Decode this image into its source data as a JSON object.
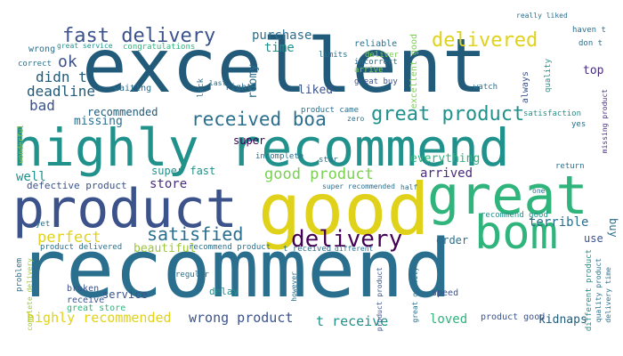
{
  "words": {
    "recommend": "recommend",
    "excellent": "excellent",
    "highly_recommend": "highly recommend",
    "product": "product",
    "good": "good",
    "great": "great",
    "bom": "bom",
    "delivery": "delivery",
    "fast_delivery": "fast delivery",
    "delivered": "delivered",
    "great_product": "great product",
    "received_boa": "received boa",
    "good_product": "good product",
    "satisfied": "satisfied",
    "perfect": "perfect",
    "ok": "ok",
    "didn_t": "didn t",
    "deadline": "deadline",
    "bad": "bad",
    "purchase": "purchase",
    "time": "time",
    "roomy": "roomy",
    "liked": "liked",
    "store": "store",
    "well": "well",
    "defective_product": "defective product",
    "super_fast": "super fast",
    "super": "super",
    "arrived": "arrived",
    "everything": "everything",
    "terrible": "terrible",
    "order": "order",
    "use": "use",
    "top": "top",
    "buy": "buy",
    "missing": "missing",
    "beautiful": "beautiful",
    "highly_recommended": "highly recommended",
    "wrong_product": "wrong product",
    "t_receive": "t receive",
    "loved": "loved",
    "kidnaps": "kidnaps",
    "service": "service",
    "delay": "delay",
    "broken": "broken",
    "receive": "receive",
    "great_store": "great store",
    "speed": "speed",
    "product_good": "product good",
    "recommend_good": "recommend good",
    "wrong": "wrong",
    "great_service": "great service",
    "congratulations": "congratulations",
    "correct": "correct",
    "waiting": "waiting",
    "right": "right",
    "lack": "lack",
    "limits": "limits",
    "reliable": "reliable",
    "deliver": "deliver",
    "incorrect": "incorrect",
    "arrive": "arrive",
    "excellent_good": "excellent good",
    "great_buy": "great buy",
    "watch": "watch",
    "always": "always",
    "quality": "quality",
    "really_liked": "really liked",
    "haven_t": "haven t",
    "don_t": "don t",
    "satisfaction": "satisfaction",
    "yes": "yes",
    "missing_product": "missing product",
    "recommended": "recommended",
    "product_came": "product came",
    "zero": "zero",
    "incomplete": "incomplete",
    "star": "star",
    "wonderful": "wonderful",
    "super_recommended": "super recommended",
    "half": "half",
    "return": "return",
    "one": "one",
    "yet": "yet",
    "recommend_product": "recommend product",
    "t_received": "t received",
    "different": "different",
    "regular": "regular",
    "product_delivered": "product delivered",
    "last": "last",
    "problem": "problem",
    "however": "however",
    "different_product": "different product",
    "quality_product": "quality product",
    "delivery_time": "delivery time",
    "complete_delivery": "complete delivery",
    "product_product": "product product",
    "great_quality": "great quality"
  }
}
